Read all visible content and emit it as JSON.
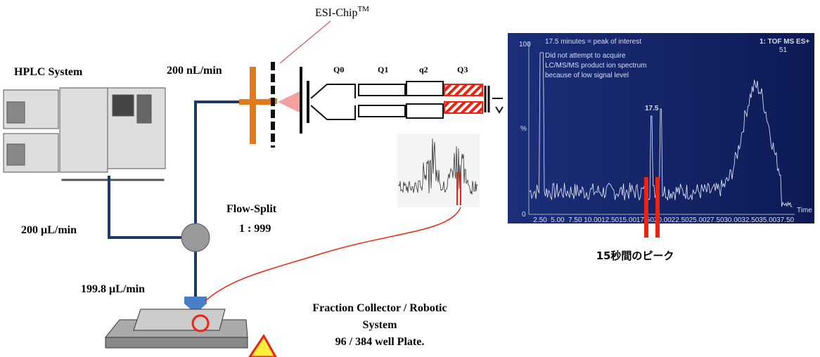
{
  "labels": {
    "esi_chip": "ESI-Chip",
    "esi_chip_sup": "TM",
    "hplc": "HPLC  System",
    "nano_flow": "200 nL/min",
    "micro_flow": "200 µL/min",
    "flow_split": "Flow-Split",
    "split_ratio": "1 : 999",
    "collector_flow": "199.8 µL/min",
    "collector_line1": "Fraction Collector / Robotic",
    "collector_line2": "System",
    "collector_line3": "96 / 384 well Plate.",
    "peak_note": "15秒間のピーク"
  },
  "ms": {
    "quads": [
      "Q0",
      "Q1",
      "q2",
      "Q3"
    ]
  },
  "spectrum": {
    "note_title": "17.5 minutes = peak of interest",
    "note_lines": [
      "Did not attempt to acquire",
      "LC/MS/MS product ion spectrum",
      "because of low signal level"
    ],
    "instrument": "1: TOF MS ES+",
    "scan": "51",
    "peak_label": "17.5",
    "y_top": "100",
    "y_mid": "%",
    "y_zero": "0",
    "x_title": "Time",
    "x_ticks": [
      "2.50",
      "5.00",
      "7.50",
      "10.00",
      "12.50",
      "15.00",
      "17.50",
      "20.00",
      "22.50",
      "25.00",
      "27.50",
      "30.00",
      "32.50",
      "35.00",
      "37.50"
    ]
  }
}
